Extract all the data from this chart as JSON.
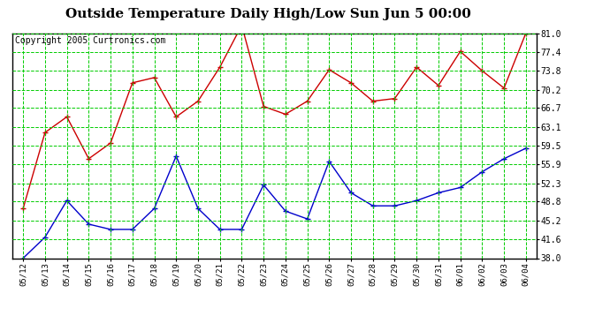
{
  "title": "Outside Temperature Daily High/Low Sun Jun 5 00:00",
  "copyright": "Copyright 2005 Curtronics.com",
  "dates": [
    "05/12",
    "05/13",
    "05/14",
    "05/15",
    "05/16",
    "05/17",
    "05/18",
    "05/19",
    "05/20",
    "05/21",
    "05/22",
    "05/23",
    "05/24",
    "05/25",
    "05/26",
    "05/27",
    "05/28",
    "05/29",
    "05/30",
    "05/31",
    "06/01",
    "06/02",
    "06/03",
    "06/04"
  ],
  "high_temps": [
    47.5,
    62.0,
    65.0,
    57.0,
    60.0,
    71.5,
    72.5,
    65.0,
    68.0,
    74.5,
    82.5,
    67.0,
    65.5,
    68.0,
    74.0,
    71.5,
    68.0,
    68.5,
    74.5,
    71.0,
    77.5,
    73.8,
    70.5,
    81.0
  ],
  "low_temps": [
    38.0,
    42.0,
    49.0,
    44.5,
    43.5,
    43.5,
    47.5,
    57.5,
    47.5,
    43.5,
    43.5,
    52.0,
    47.0,
    45.5,
    56.5,
    50.5,
    48.0,
    48.0,
    49.0,
    50.5,
    51.5,
    54.5,
    57.0,
    59.0
  ],
  "ylim_min": 38.0,
  "ylim_max": 81.0,
  "yticks": [
    38.0,
    41.6,
    45.2,
    48.8,
    52.3,
    55.9,
    59.5,
    63.1,
    66.7,
    70.2,
    73.8,
    77.4,
    81.0
  ],
  "high_color": "#cc0000",
  "low_color": "#0000cc",
  "bg_color": "#ffffff",
  "plot_bg_color": "#ffffff",
  "grid_color": "#00cc00",
  "title_fontsize": 11,
  "copyright_fontsize": 7
}
